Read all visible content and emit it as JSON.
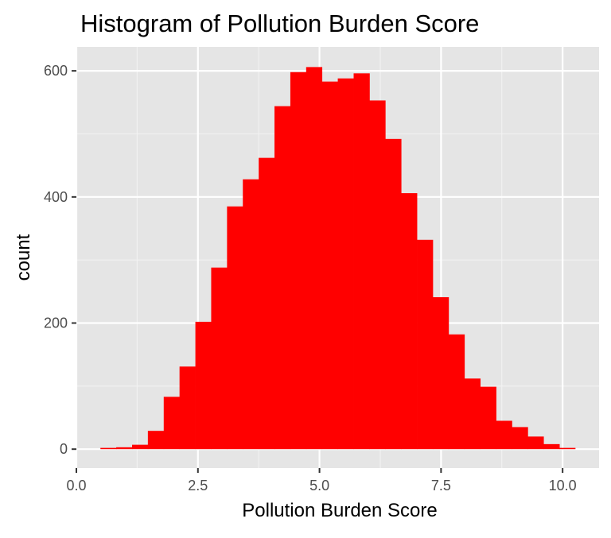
{
  "chart_data": {
    "type": "bar",
    "title": "Histogram of Pollution Burden Score",
    "xlabel": "Pollution Burden Score",
    "ylabel": "count",
    "xlim": [
      0,
      10.75
    ],
    "ylim": [
      -30,
      638
    ],
    "x_ticks": [
      {
        "value": 0,
        "label": "0.0"
      },
      {
        "value": 2.5,
        "label": "2.5"
      },
      {
        "value": 5,
        "label": "5.0"
      },
      {
        "value": 7.5,
        "label": "7.5"
      },
      {
        "value": 10,
        "label": "10.0"
      }
    ],
    "y_ticks": [
      {
        "value": 0,
        "label": "0"
      },
      {
        "value": 200,
        "label": "200"
      },
      {
        "value": 400,
        "label": "400"
      },
      {
        "value": 600,
        "label": "600"
      }
    ],
    "bin_width": 0.325,
    "bin_centers": [
      0.657,
      0.982,
      1.308,
      1.633,
      1.959,
      2.284,
      2.61,
      2.935,
      3.261,
      3.586,
      3.912,
      4.237,
      4.563,
      4.888,
      5.214,
      5.539,
      5.865,
      6.19,
      6.516,
      6.841,
      7.167,
      7.492,
      7.818,
      8.143,
      8.469,
      8.794,
      9.12,
      9.445,
      9.771,
      10.096
    ],
    "values": [
      2,
      3,
      7,
      29,
      83,
      131,
      202,
      288,
      385,
      428,
      462,
      544,
      598,
      606,
      583,
      588,
      596,
      553,
      492,
      406,
      332,
      241,
      182,
      112,
      99,
      45,
      35,
      20,
      8,
      2
    ],
    "bar_color": "#ff0000",
    "panel_background": "#e5e5e5",
    "grid": true
  }
}
